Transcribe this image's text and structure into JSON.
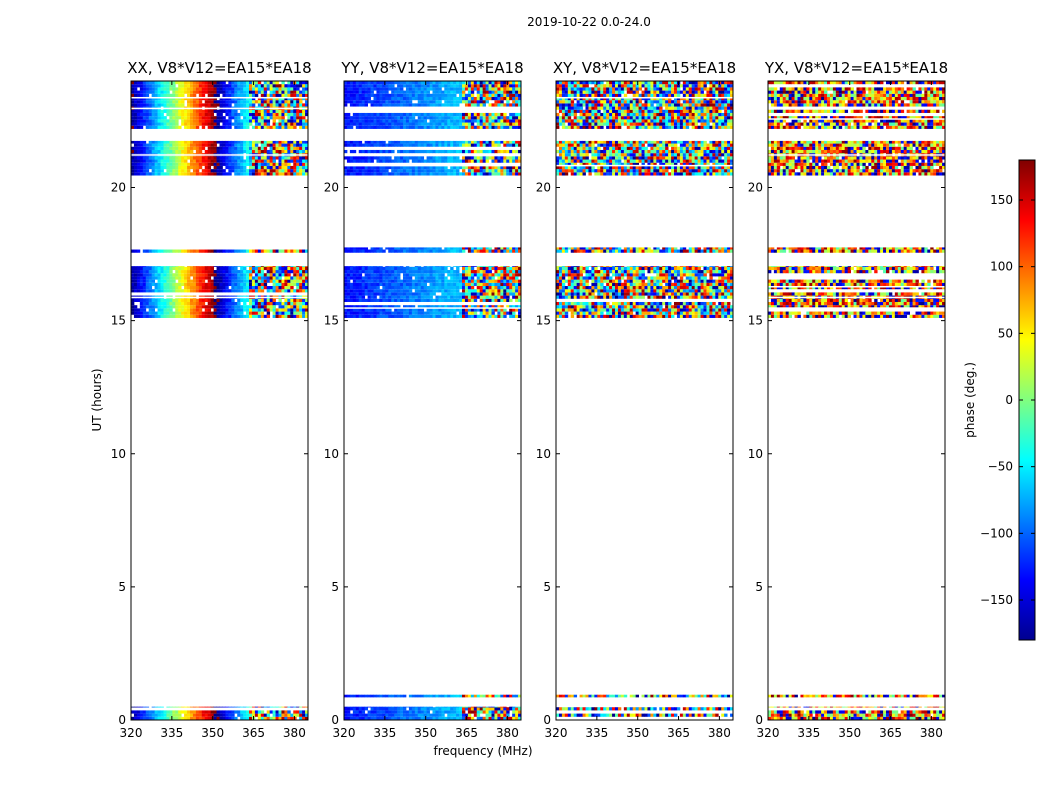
{
  "figure": {
    "suptitle": "2019-10-22 0.0-24.0",
    "xlabel": "frequency (MHz)",
    "ylabel": "UT (hours)"
  },
  "colorbar": {
    "label": "phase (deg.)",
    "range": [
      -180,
      180
    ],
    "ticks": [
      150,
      100,
      50,
      0,
      -50,
      -100,
      -150
    ],
    "tick_labels": [
      "150",
      "100",
      "50",
      "0",
      "−50",
      "−100",
      "−150"
    ],
    "colormap": [
      "#00008f",
      "#0000ff",
      "#0080ff",
      "#00ffff",
      "#80ff80",
      "#ffff00",
      "#ff8000",
      "#ff0000",
      "#800000"
    ]
  },
  "chart_data": [
    {
      "type": "heatmap",
      "title": "XX, V8*V12=EA15*EA18",
      "xlim": [
        320,
        385
      ],
      "ylim": [
        0,
        24
      ],
      "xticks": [
        320,
        335,
        350,
        365,
        380
      ],
      "yticks": [
        0,
        5,
        10,
        15,
        20
      ],
      "style": "gradient",
      "base": -170,
      "slope": 11.5,
      "break_freq": 363,
      "scatter_start": 363,
      "row_bands": [
        [
          0.0,
          0.5
        ],
        [
          0.85,
          0.95
        ],
        [
          15.1,
          17.05
        ],
        [
          17.55,
          17.75
        ],
        [
          20.45,
          21.75
        ],
        [
          22.2,
          24.0
        ]
      ]
    },
    {
      "type": "heatmap",
      "title": "YY, V8*V12=EA15*EA18",
      "xlim": [
        320,
        385
      ],
      "ylim": [
        0,
        24
      ],
      "xticks": [
        320,
        335,
        350,
        365,
        380
      ],
      "yticks": [
        0,
        5,
        10,
        15,
        20
      ],
      "style": "gradient",
      "base": -130,
      "slope": 1.5,
      "break_freq": 363,
      "scatter_start": 363,
      "row_bands": [
        [
          0.0,
          0.5
        ],
        [
          0.85,
          0.95
        ],
        [
          15.1,
          17.05
        ],
        [
          17.55,
          17.75
        ],
        [
          20.45,
          21.75
        ],
        [
          22.2,
          24.0
        ]
      ]
    },
    {
      "type": "heatmap",
      "title": "XY, V8*V12=EA15*EA18",
      "xlim": [
        320,
        385
      ],
      "ylim": [
        0,
        24
      ],
      "xticks": [
        320,
        335,
        350,
        365,
        380
      ],
      "yticks": [
        0,
        5,
        10,
        15,
        20
      ],
      "style": "noise",
      "base": 0,
      "spread": 180,
      "row_bands": [
        [
          0.0,
          0.5
        ],
        [
          0.85,
          0.95
        ],
        [
          15.1,
          17.05
        ],
        [
          17.55,
          17.75
        ],
        [
          20.45,
          21.75
        ],
        [
          22.2,
          24.0
        ]
      ]
    },
    {
      "type": "heatmap",
      "title": "YX, V8*V12=EA15*EA18",
      "xlim": [
        320,
        385
      ],
      "ylim": [
        0,
        24
      ],
      "xticks": [
        320,
        335,
        350,
        365,
        380
      ],
      "yticks": [
        0,
        5,
        10,
        15,
        20
      ],
      "style": "noise",
      "base": 110,
      "spread": 130,
      "row_bands": [
        [
          0.0,
          0.5
        ],
        [
          0.85,
          0.95
        ],
        [
          15.1,
          17.05
        ],
        [
          17.55,
          17.75
        ],
        [
          20.45,
          21.75
        ],
        [
          22.2,
          24.0
        ]
      ]
    }
  ]
}
